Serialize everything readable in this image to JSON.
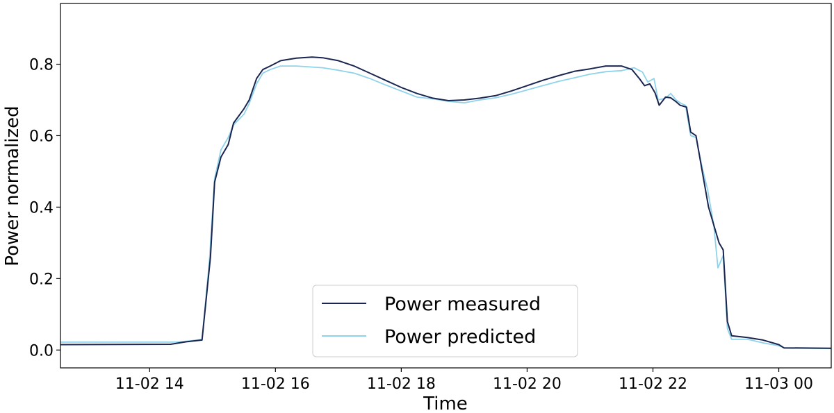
{
  "chart_data": {
    "type": "line",
    "title": "",
    "xlabel": "Time",
    "ylabel": "Power normalized",
    "xlim": [
      "11-02 12:35",
      "11-03 00:50"
    ],
    "ylim": [
      -0.05,
      0.97
    ],
    "xticks": [
      {
        "t": "11-02 14:00",
        "label": "11-02 14"
      },
      {
        "t": "11-02 16:00",
        "label": "11-02 16"
      },
      {
        "t": "11-02 18:00",
        "label": "11-02 18"
      },
      {
        "t": "11-02 20:00",
        "label": "11-02 20"
      },
      {
        "t": "11-02 22:00",
        "label": "11-02 22"
      },
      {
        "t": "11-03 00:00",
        "label": "11-03 00"
      }
    ],
    "yticks": [
      {
        "v": 0.0,
        "label": "0.0"
      },
      {
        "v": 0.2,
        "label": "0.2"
      },
      {
        "v": 0.4,
        "label": "0.4"
      },
      {
        "v": 0.6,
        "label": "0.6"
      },
      {
        "v": 0.8,
        "label": "0.8"
      }
    ],
    "grid": false,
    "legend_position": "bottom-center",
    "series": [
      {
        "name": "Power measured",
        "color": "#1a2550",
        "points": [
          [
            "11-02 12:35",
            0.015
          ],
          [
            "11-02 14:20",
            0.016
          ],
          [
            "11-02 14:35",
            0.023
          ],
          [
            "11-02 14:50",
            0.028
          ],
          [
            "11-02 14:58",
            0.26
          ],
          [
            "11-02 15:02",
            0.47
          ],
          [
            "11-02 15:08",
            0.54
          ],
          [
            "11-02 15:15",
            0.575
          ],
          [
            "11-02 15:20",
            0.635
          ],
          [
            "11-02 15:30",
            0.675
          ],
          [
            "11-02 15:35",
            0.7
          ],
          [
            "11-02 15:42",
            0.76
          ],
          [
            "11-02 15:48",
            0.785
          ],
          [
            "11-02 15:55",
            0.795
          ],
          [
            "11-02 16:05",
            0.81
          ],
          [
            "11-02 16:20",
            0.817
          ],
          [
            "11-02 16:35",
            0.82
          ],
          [
            "11-02 16:45",
            0.818
          ],
          [
            "11-02 17:00",
            0.81
          ],
          [
            "11-02 17:15",
            0.795
          ],
          [
            "11-02 17:30",
            0.775
          ],
          [
            "11-02 17:45",
            0.755
          ],
          [
            "11-02 18:00",
            0.735
          ],
          [
            "11-02 18:15",
            0.718
          ],
          [
            "11-02 18:30",
            0.705
          ],
          [
            "11-02 18:45",
            0.698
          ],
          [
            "11-02 19:00",
            0.7
          ],
          [
            "11-02 19:15",
            0.705
          ],
          [
            "11-02 19:30",
            0.712
          ],
          [
            "11-02 19:45",
            0.725
          ],
          [
            "11-02 20:00",
            0.74
          ],
          [
            "11-02 20:15",
            0.755
          ],
          [
            "11-02 20:30",
            0.768
          ],
          [
            "11-02 20:45",
            0.78
          ],
          [
            "11-02 21:00",
            0.787
          ],
          [
            "11-02 21:15",
            0.795
          ],
          [
            "11-02 21:30",
            0.795
          ],
          [
            "11-02 21:40",
            0.785
          ],
          [
            "11-02 21:47",
            0.76
          ],
          [
            "11-02 21:52",
            0.74
          ],
          [
            "11-02 21:57",
            0.745
          ],
          [
            "11-02 22:02",
            0.72
          ],
          [
            "11-02 22:06",
            0.685
          ],
          [
            "11-02 22:12",
            0.708
          ],
          [
            "11-02 22:17",
            0.706
          ],
          [
            "11-02 22:22",
            0.695
          ],
          [
            "11-02 22:26",
            0.685
          ],
          [
            "11-02 22:32",
            0.68
          ],
          [
            "11-02 22:36",
            0.61
          ],
          [
            "11-02 22:41",
            0.6
          ],
          [
            "11-02 22:47",
            0.5
          ],
          [
            "11-02 22:53",
            0.4
          ],
          [
            "11-02 22:58",
            0.35
          ],
          [
            "11-02 23:03",
            0.3
          ],
          [
            "11-02 23:07",
            0.28
          ],
          [
            "11-02 23:11",
            0.08
          ],
          [
            "11-02 23:15",
            0.04
          ],
          [
            "11-02 23:30",
            0.035
          ],
          [
            "11-02 23:45",
            0.028
          ],
          [
            "11-03 00:00",
            0.015
          ],
          [
            "11-03 00:05",
            0.006
          ],
          [
            "11-03 00:50",
            0.005
          ]
        ]
      },
      {
        "name": "Power predicted",
        "color": "#8fd3ea",
        "points": [
          [
            "11-02 12:35",
            0.022
          ],
          [
            "11-02 14:25",
            0.022
          ],
          [
            "11-02 14:40",
            0.026
          ],
          [
            "11-02 14:50",
            0.03
          ],
          [
            "11-02 14:57",
            0.25
          ],
          [
            "11-02 15:02",
            0.48
          ],
          [
            "11-02 15:08",
            0.56
          ],
          [
            "11-02 15:15",
            0.595
          ],
          [
            "11-02 15:20",
            0.63
          ],
          [
            "11-02 15:30",
            0.66
          ],
          [
            "11-02 15:35",
            0.69
          ],
          [
            "11-02 15:42",
            0.745
          ],
          [
            "11-02 15:48",
            0.775
          ],
          [
            "11-02 15:55",
            0.785
          ],
          [
            "11-02 16:05",
            0.795
          ],
          [
            "11-02 16:20",
            0.795
          ],
          [
            "11-02 16:35",
            0.792
          ],
          [
            "11-02 16:45",
            0.79
          ],
          [
            "11-02 17:00",
            0.783
          ],
          [
            "11-02 17:15",
            0.775
          ],
          [
            "11-02 17:30",
            0.76
          ],
          [
            "11-02 17:45",
            0.742
          ],
          [
            "11-02 18:00",
            0.725
          ],
          [
            "11-02 18:15",
            0.708
          ],
          [
            "11-02 18:30",
            0.703
          ],
          [
            "11-02 18:45",
            0.696
          ],
          [
            "11-02 19:00",
            0.692
          ],
          [
            "11-02 19:15",
            0.7
          ],
          [
            "11-02 19:30",
            0.706
          ],
          [
            "11-02 19:45",
            0.716
          ],
          [
            "11-02 20:00",
            0.728
          ],
          [
            "11-02 20:15",
            0.74
          ],
          [
            "11-02 20:30",
            0.752
          ],
          [
            "11-02 20:45",
            0.762
          ],
          [
            "11-02 21:00",
            0.772
          ],
          [
            "11-02 21:15",
            0.779
          ],
          [
            "11-02 21:30",
            0.782
          ],
          [
            "11-02 21:42",
            0.79
          ],
          [
            "11-02 21:50",
            0.778
          ],
          [
            "11-02 21:55",
            0.75
          ],
          [
            "11-02 22:01",
            0.76
          ],
          [
            "11-02 22:05",
            0.7
          ],
          [
            "11-02 22:12",
            0.705
          ],
          [
            "11-02 22:17",
            0.718
          ],
          [
            "11-02 22:22",
            0.7
          ],
          [
            "11-02 22:27",
            0.69
          ],
          [
            "11-02 22:31",
            0.685
          ],
          [
            "11-02 22:36",
            0.6
          ],
          [
            "11-02 22:41",
            0.595
          ],
          [
            "11-02 22:47",
            0.51
          ],
          [
            "11-02 22:52",
            0.45
          ],
          [
            "11-02 22:58",
            0.35
          ],
          [
            "11-02 23:02",
            0.23
          ],
          [
            "11-02 23:07",
            0.265
          ],
          [
            "11-02 23:11",
            0.06
          ],
          [
            "11-02 23:15",
            0.03
          ],
          [
            "11-02 23:30",
            0.03
          ],
          [
            "11-02 23:45",
            0.02
          ],
          [
            "11-03 00:00",
            0.012
          ],
          [
            "11-03 00:05",
            0.006
          ],
          [
            "11-03 00:50",
            0.004
          ]
        ]
      }
    ]
  }
}
